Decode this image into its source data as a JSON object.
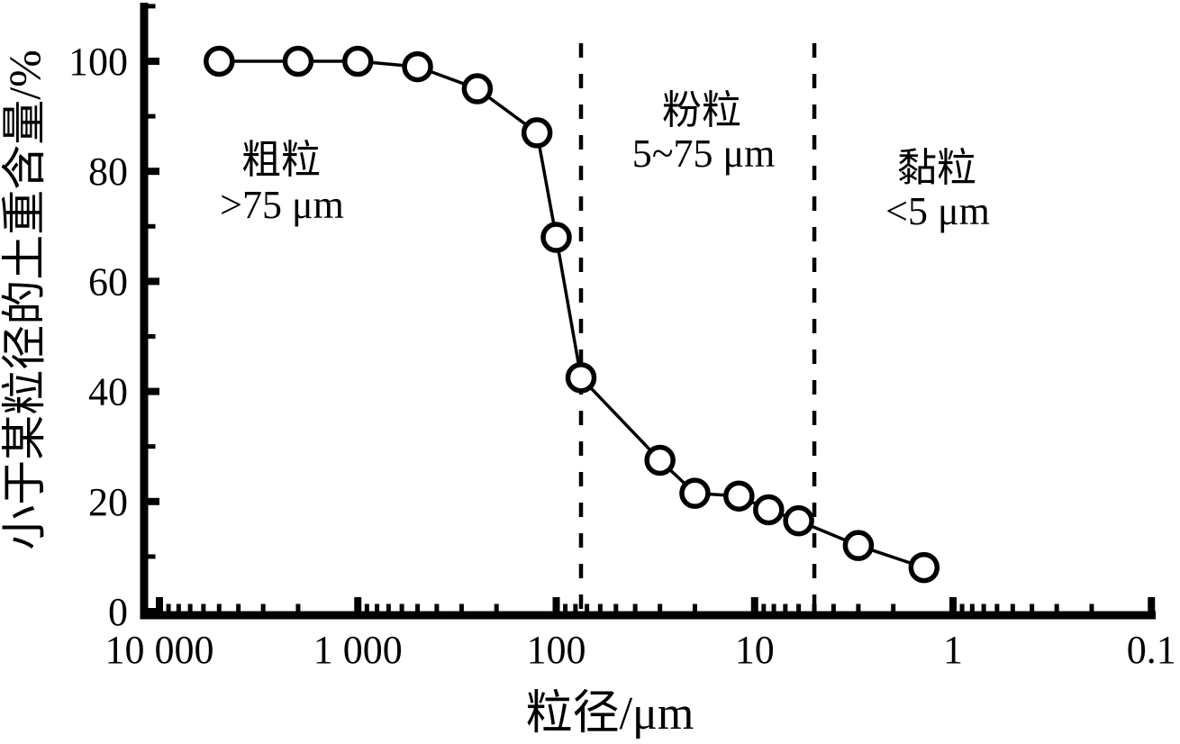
{
  "colors": {
    "ink": "#000000",
    "background": "#ffffff"
  },
  "chart_data": {
    "type": "line",
    "title": "",
    "xlabel": "粒径/μm",
    "ylabel": "小于某粒径的土重含量/%",
    "x_scale": "log",
    "x_direction": "decreasing",
    "xlim": [
      12589,
      0.1
    ],
    "ylim": [
      0,
      110
    ],
    "grid": false,
    "legend": false,
    "x_ticks": [
      {
        "value": 10000,
        "label": "10 000"
      },
      {
        "value": 1000,
        "label": "1 000"
      },
      {
        "value": 100,
        "label": "100"
      },
      {
        "value": 10,
        "label": "10"
      },
      {
        "value": 1,
        "label": "1"
      },
      {
        "value": 0.1,
        "label": "0.1"
      }
    ],
    "y_ticks": [
      {
        "value": 0,
        "label": "0"
      },
      {
        "value": 20,
        "label": "20"
      },
      {
        "value": 40,
        "label": "40"
      },
      {
        "value": 60,
        "label": "60"
      },
      {
        "value": 80,
        "label": "80"
      },
      {
        "value": 100,
        "label": "100"
      }
    ],
    "y_minor_ticks": [
      10,
      30,
      50,
      70,
      90,
      110
    ],
    "series": [
      {
        "name": "cumulative-grain-size-curve",
        "marker": "open-circle",
        "points": [
          {
            "x": 5000,
            "y": 100
          },
          {
            "x": 2000,
            "y": 100
          },
          {
            "x": 1000,
            "y": 100
          },
          {
            "x": 500,
            "y": 99
          },
          {
            "x": 250,
            "y": 95
          },
          {
            "x": 125,
            "y": 87
          },
          {
            "x": 100,
            "y": 68
          },
          {
            "x": 75,
            "y": 42.5
          },
          {
            "x": 30,
            "y": 27.5
          },
          {
            "x": 20,
            "y": 21.5
          },
          {
            "x": 12,
            "y": 21
          },
          {
            "x": 8.5,
            "y": 18.5
          },
          {
            "x": 6,
            "y": 16.5
          },
          {
            "x": 3,
            "y": 12
          },
          {
            "x": 1.4,
            "y": 8
          }
        ]
      }
    ],
    "region_boundaries": [
      {
        "x": 75,
        "style": "dashed"
      },
      {
        "x": 5,
        "style": "dashed"
      }
    ],
    "annotations": [
      {
        "id": "coarse",
        "lines": [
          "粗粒",
          ">75 μm"
        ]
      },
      {
        "id": "silt",
        "lines": [
          "粉粒",
          "5~75 μm"
        ]
      },
      {
        "id": "clay",
        "lines": [
          "黏粒",
          "<5 μm"
        ]
      }
    ]
  }
}
